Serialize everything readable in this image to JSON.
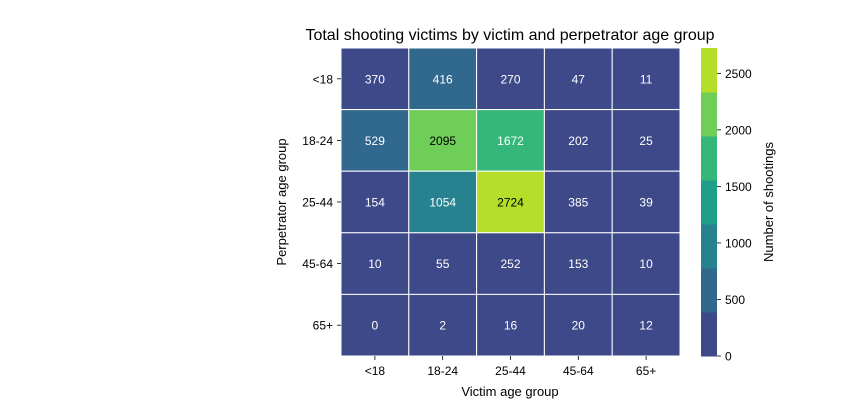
{
  "chart_data": {
    "type": "heatmap",
    "title": "Total shooting victims by victim and perpetrator age group",
    "xlabel": "Victim age group",
    "ylabel": "Perpetrator age group",
    "x_categories": [
      "<18",
      "18-24",
      "25-44",
      "45-64",
      "65+"
    ],
    "y_categories": [
      "<18",
      "18-24",
      "25-44",
      "45-64",
      "65+"
    ],
    "values": [
      [
        370,
        416,
        270,
        47,
        11
      ],
      [
        529,
        2095,
        1672,
        202,
        25
      ],
      [
        154,
        1054,
        2724,
        385,
        39
      ],
      [
        10,
        55,
        252,
        153,
        10
      ],
      [
        0,
        2,
        16,
        20,
        12
      ]
    ],
    "colorbar": {
      "label": "Number of shootings",
      "range": [
        0,
        2724
      ],
      "ticks": [
        "0",
        "500",
        "1000",
        "1500",
        "2000",
        "2500"
      ],
      "tick_values": [
        0,
        500,
        1000,
        1500,
        2000,
        2500
      ],
      "colors": [
        "#3e4989",
        "#31688e",
        "#26828e",
        "#1f9e89",
        "#35b779",
        "#6ece58",
        "#b5de2b"
      ]
    },
    "label_color_dark": "#000000",
    "label_color_light": "#ffffff",
    "grid_line_color": "#ffffff"
  }
}
